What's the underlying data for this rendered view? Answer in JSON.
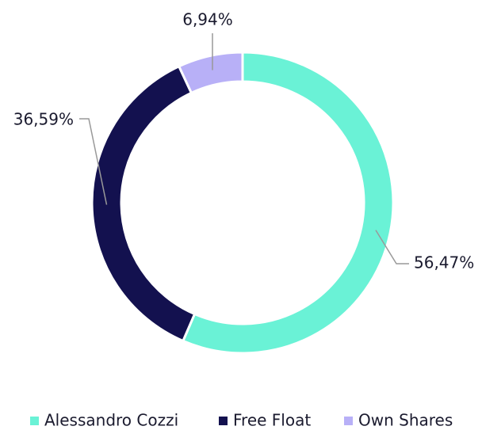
{
  "chart_data": {
    "type": "donut",
    "categories": [
      "Alessandro Cozzi",
      "Free Float",
      "Own Shares"
    ],
    "values": [
      56.47,
      36.59,
      6.94
    ],
    "value_labels": [
      "56,47%",
      "36,59%",
      "6,94%"
    ],
    "colors": [
      "#6af2d6",
      "#13114f",
      "#b8b0f7"
    ],
    "legend": "bottom"
  }
}
